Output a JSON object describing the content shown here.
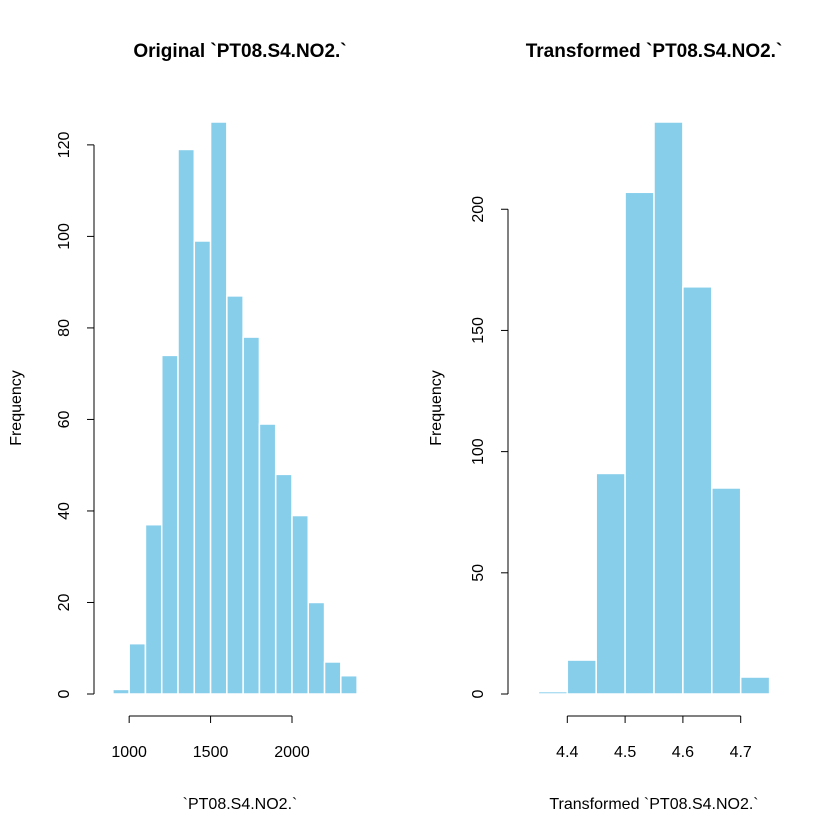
{
  "colors": {
    "bar_fill": "#87CEEB",
    "bar_border": "#ffffff",
    "axis": "#000000"
  },
  "chart_data": [
    {
      "type": "bar",
      "title": "Original `PT08.S4.NO2.`",
      "xlabel": "`PT08.S4.NO2.`",
      "ylabel": "Frequency",
      "bin_edges": [
        900,
        1000,
        1100,
        1200,
        1300,
        1400,
        1500,
        1600,
        1700,
        1800,
        1900,
        2000,
        2100,
        2200,
        2300,
        2400
      ],
      "values": [
        1,
        11,
        37,
        74,
        119,
        99,
        125,
        87,
        78,
        59,
        48,
        39,
        20,
        7,
        4
      ],
      "xticks": [
        1000,
        1500,
        2000
      ],
      "xtick_labels": [
        "1000",
        "1500",
        "2000"
      ],
      "yticks": [
        0,
        20,
        40,
        60,
        80,
        100,
        120
      ],
      "ytick_labels": [
        "0",
        "20",
        "40",
        "60",
        "80",
        "100",
        "120"
      ],
      "xlim": [
        870,
        2430
      ],
      "ylim": [
        0,
        125
      ],
      "grid": false,
      "legend": "none"
    },
    {
      "type": "bar",
      "title": "Transformed `PT08.S4.NO2.`",
      "xlabel": "Transformed `PT08.S4.NO2.`",
      "ylabel": "Frequency",
      "bin_edges": [
        4.35,
        4.4,
        4.45,
        4.5,
        4.55,
        4.6,
        4.65,
        4.7,
        4.75
      ],
      "values": [
        1,
        14,
        91,
        207,
        236,
        168,
        85,
        7
      ],
      "xticks": [
        4.4,
        4.5,
        4.6,
        4.7
      ],
      "xtick_labels": [
        "4.4",
        "4.5",
        "4.6",
        "4.7"
      ],
      "yticks": [
        0,
        50,
        100,
        150,
        200
      ],
      "ytick_labels": [
        "0",
        "50",
        "100",
        "150",
        "200"
      ],
      "xlim": [
        4.332,
        4.768
      ],
      "ylim": [
        0,
        236
      ],
      "grid": false,
      "legend": "none"
    }
  ]
}
